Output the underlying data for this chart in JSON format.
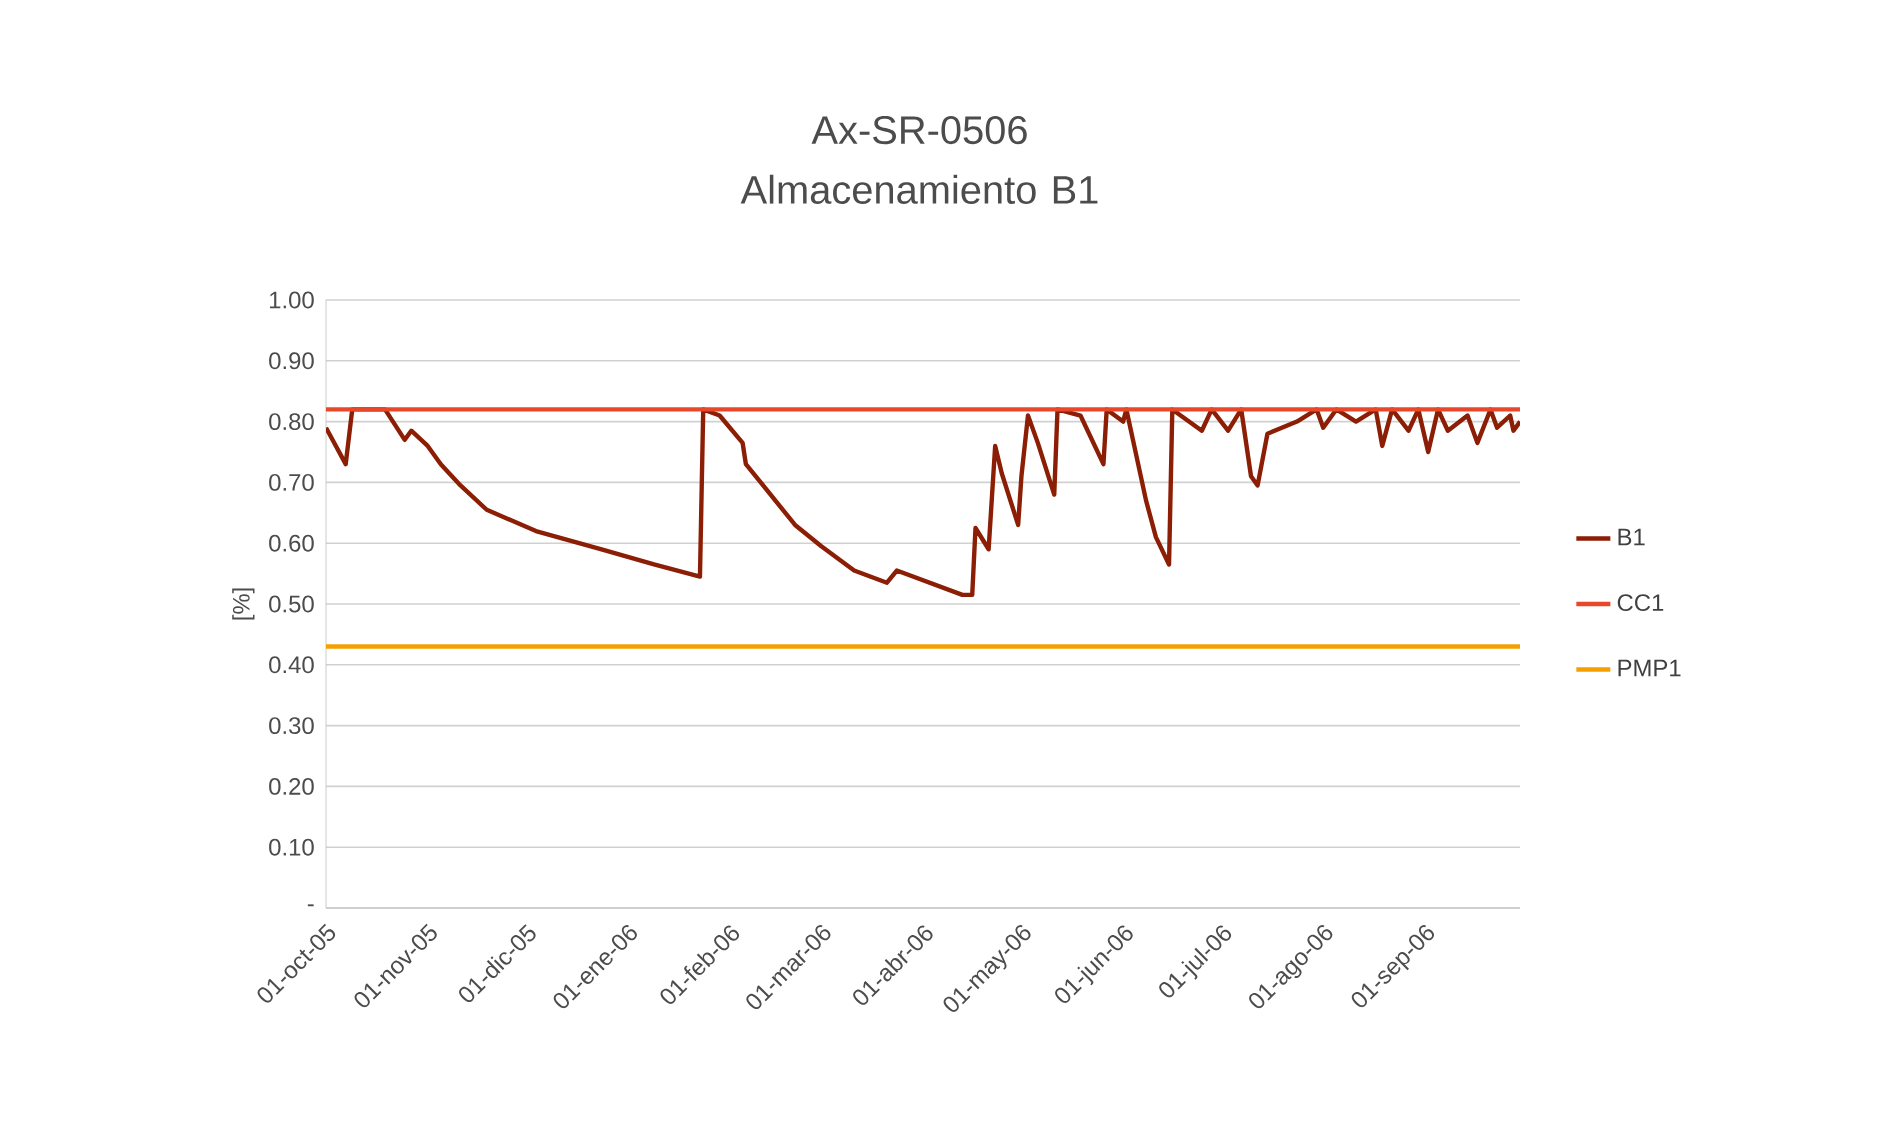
{
  "chart_data": {
    "type": "line",
    "title": "Ax-SR-0506 Almacenamiento B1",
    "ylabel": "[%]",
    "series": [
      {
        "name": "B1",
        "color": "#8b1e04",
        "x": [
          "2005-10-01",
          "2005-10-07",
          "2005-10-09",
          "2005-10-19",
          "2005-10-25",
          "2005-10-27",
          "2005-11-01",
          "2005-11-05",
          "2005-11-11",
          "2005-11-19",
          "2005-12-04",
          "2005-12-24",
          "2006-01-09",
          "2006-01-23",
          "2006-01-24",
          "2006-01-29",
          "2006-02-05",
          "2006-02-06",
          "2006-02-12",
          "2006-02-21",
          "2006-03-01",
          "2006-03-11",
          "2006-03-21",
          "2006-03-24",
          "2006-04-13",
          "2006-04-16",
          "2006-04-17",
          "2006-04-21",
          "2006-04-23",
          "2006-04-25",
          "2006-04-30",
          "2006-05-01",
          "2006-05-03",
          "2006-05-06",
          "2006-05-11",
          "2006-05-12",
          "2006-05-19",
          "2006-05-26",
          "2006-05-27",
          "2006-06-01",
          "2006-06-02",
          "2006-06-08",
          "2006-06-11",
          "2006-06-15",
          "2006-06-16",
          "2006-06-25",
          "2006-06-28",
          "2006-07-03",
          "2006-07-07",
          "2006-07-10",
          "2006-07-12",
          "2006-07-15",
          "2006-07-24",
          "2006-07-30",
          "2006-08-01",
          "2006-08-05",
          "2006-08-11",
          "2006-08-17",
          "2006-08-19",
          "2006-08-22",
          "2006-08-27",
          "2006-08-30",
          "2006-09-02",
          "2006-09-05",
          "2006-09-08",
          "2006-09-14",
          "2006-09-17",
          "2006-09-21",
          "2006-09-23",
          "2006-09-27",
          "2006-09-28",
          "2006-09-30"
        ],
        "values": [
          0.79,
          0.73,
          0.82,
          0.82,
          0.77,
          0.785,
          0.76,
          0.73,
          0.695,
          0.655,
          0.62,
          0.59,
          0.565,
          0.545,
          0.82,
          0.81,
          0.765,
          0.73,
          0.69,
          0.63,
          0.595,
          0.555,
          0.535,
          0.555,
          0.515,
          0.515,
          0.625,
          0.59,
          0.76,
          0.715,
          0.63,
          0.71,
          0.81,
          0.765,
          0.68,
          0.82,
          0.81,
          0.73,
          0.82,
          0.8,
          0.82,
          0.67,
          0.61,
          0.565,
          0.82,
          0.785,
          0.82,
          0.785,
          0.82,
          0.71,
          0.695,
          0.78,
          0.8,
          0.82,
          0.79,
          0.82,
          0.8,
          0.82,
          0.76,
          0.82,
          0.785,
          0.82,
          0.75,
          0.82,
          0.785,
          0.81,
          0.765,
          0.82,
          0.79,
          0.81,
          0.785,
          0.8
        ]
      },
      {
        "name": "CC1",
        "color": "#e8472a",
        "x": [
          "2005-10-01",
          "2006-09-30"
        ],
        "values": [
          0.82,
          0.82
        ]
      },
      {
        "name": "PMP1",
        "color": "#f4a000",
        "x": [
          "2005-10-01",
          "2006-09-30"
        ],
        "values": [
          0.43,
          0.43
        ]
      }
    ],
    "xlim": [
      "2005-10-01",
      "2006-09-30"
    ],
    "xticks": [
      {
        "value": "2005-10-01",
        "label": "01-oct-05"
      },
      {
        "value": "2005-11-01",
        "label": "01-nov-05"
      },
      {
        "value": "2005-12-01",
        "label": "01-dic-05"
      },
      {
        "value": "2006-01-01",
        "label": "01-ene-06"
      },
      {
        "value": "2006-02-01",
        "label": "01-feb-06"
      },
      {
        "value": "2006-03-01",
        "label": "01-mar-06"
      },
      {
        "value": "2006-04-01",
        "label": "01-abr-06"
      },
      {
        "value": "2006-05-01",
        "label": "01-may-06"
      },
      {
        "value": "2006-06-01",
        "label": "01-jun-06"
      },
      {
        "value": "2006-07-01",
        "label": "01-jul-06"
      },
      {
        "value": "2006-08-01",
        "label": "01-ago-06"
      },
      {
        "value": "2006-09-01",
        "label": "01-sep-06"
      }
    ],
    "ylim": [
      0,
      1
    ],
    "yticks": [
      {
        "value": 0,
        "label": "-"
      },
      {
        "value": 0.1,
        "label": "0.10"
      },
      {
        "value": 0.2,
        "label": "0.20"
      },
      {
        "value": 0.3,
        "label": "0.30"
      },
      {
        "value": 0.4,
        "label": "0.40"
      },
      {
        "value": 0.5,
        "label": "0.50"
      },
      {
        "value": 0.6,
        "label": "0.60"
      },
      {
        "value": 0.7,
        "label": "0.70"
      },
      {
        "value": 0.8,
        "label": "0.80"
      },
      {
        "value": 0.9,
        "label": "0.90"
      },
      {
        "value": 1.0,
        "label": "1.00"
      }
    ],
    "grid": "y",
    "legend": "right",
    "marker": "none",
    "line_style": "solid"
  }
}
